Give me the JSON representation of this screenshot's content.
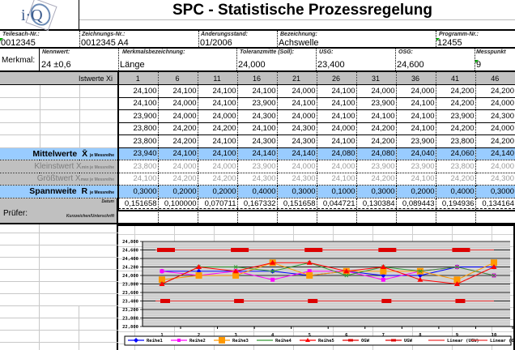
{
  "header": {
    "logo_text": "i·Q",
    "title": "SPC - Statistische Prozessregelung"
  },
  "info": {
    "teilesach_label": "Teilesach-Nr.:",
    "teilesach_value": "0012345",
    "zeichnung_label": "Zeichnungs-Nr.:",
    "zeichnung_value": "0012345 A4",
    "aenderung_label": "Änderungsstand:",
    "aenderung_value": "01/2006",
    "bezeichnung_label": "Bezeichnung:",
    "bezeichnung_value": "Achswelle",
    "programm_label": "Programm-Nr.:",
    "programm_value": "12455"
  },
  "merkmal": {
    "label": "Merkmal:",
    "nennwert_label": "Nennwert:",
    "nennwert_value": "24 ±0,6",
    "bezeichnung_label": "Merkmalsbezeichnung:",
    "bezeichnung_value": "Länge",
    "toleranz_label": "Toleranzmitte (Soll):",
    "toleranz_value": "24,000",
    "usg_label": "USG:",
    "usg_value": "23,400",
    "osg_label": "OSG:",
    "osg_value": "24,600",
    "messpunkt_label": "Messpunkt",
    "messpunkt_value": "9"
  },
  "table": {
    "istwerte_label": "Istwerte Xi",
    "columns": [
      "1",
      "6",
      "11",
      "16",
      "21",
      "26",
      "31",
      "36",
      "41",
      "46"
    ],
    "rows": [
      [
        "24,100",
        "24,100",
        "24,100",
        "24,100",
        "24,000",
        "24,100",
        "24,000",
        "24,000",
        "24,200",
        "24,200"
      ],
      [
        "24,100",
        "24,000",
        "24,100",
        "23,900",
        "24,100",
        "24,100",
        "23,900",
        "24,100",
        "24,200",
        "24,000"
      ],
      [
        "23,900",
        "24,000",
        "24,000",
        "24,300",
        "24,000",
        "24,100",
        "24,100",
        "24,100",
        "23,900",
        "24,300"
      ],
      [
        "23,800",
        "24,200",
        "24,200",
        "24,100",
        "24,300",
        "24,000",
        "24,200",
        "24,100",
        "24,200",
        "24,000"
      ],
      [
        "23,800",
        "24,200",
        "24,100",
        "24,300",
        "24,300",
        "24,100",
        "24,200",
        "23,900",
        "23,800",
        "24,200"
      ]
    ],
    "mittelwerte_label": "Mittelwerte",
    "mittelwerte_symbol": "X̄",
    "je_messreihe": "je Messreihe",
    "mittelwerte": [
      "23,940",
      "24,100",
      "24,100",
      "24,140",
      "24,140",
      "24,080",
      "24,080",
      "24,040",
      "24,060",
      "24,140"
    ],
    "kleinstwert_label": "Kleinstwert X",
    "kleinstwert_sub": "min je Messreihe",
    "kleinstwert": [
      "23,800",
      "24,000",
      "24,000",
      "23,900",
      "24,000",
      "24,000",
      "23,900",
      "23,900",
      "23,800",
      "24,000"
    ],
    "groesstwert_label": "Größtwert X",
    "groesstwert_sub": "max je Messreihe",
    "groesstwert": [
      "24,100",
      "24,200",
      "24,200",
      "24,300",
      "24,300",
      "24,100",
      "24,200",
      "24,100",
      "24,200",
      "24,300"
    ],
    "spannweite_label": "Spannweite",
    "spannweite_symbol": "R",
    "spannweite": [
      "0,3000",
      "0,2000",
      "0,2000",
      "0,4000",
      "0,3000",
      "0,1000",
      "0,3000",
      "0,2000",
      "0,4000",
      "0,3000"
    ],
    "std_label": "Standardabweichung S",
    "std_sub": "x je Messreihe",
    "std": [
      "0,151658",
      "0,100000",
      "0,070711",
      "0,167332",
      "0,151658",
      "0,044721",
      "0,130384",
      "0,089443",
      "0,194936",
      "0,134164"
    ]
  },
  "pruefer": {
    "label": "Prüfer:",
    "datum_label": "Datum",
    "kurzzeichen_label": "Kurzzeichen/Unterschrift"
  },
  "chart_data": {
    "type": "line",
    "title": "",
    "categories": [
      "1",
      "2",
      "3",
      "4",
      "5",
      "6",
      "7",
      "8",
      "9",
      "10"
    ],
    "ylim": [
      22.8,
      24.8
    ],
    "yticks": [
      "24,800",
      "24,600",
      "24,400",
      "24,200",
      "24,000",
      "23,800",
      "23,600",
      "23,400",
      "23,200",
      "23,000",
      "22,800"
    ],
    "xlabel": "",
    "ylabel": "",
    "grid": true,
    "legend_position": "bottom",
    "series": [
      {
        "name": "Reihe1",
        "color": "#0000ff",
        "marker": "diamond",
        "values": [
          24.1,
          24.1,
          24.1,
          24.1,
          24.0,
          24.1,
          24.0,
          24.0,
          24.2,
          24.2
        ]
      },
      {
        "name": "Reihe2",
        "color": "#ff00ff",
        "marker": "square",
        "values": [
          24.1,
          24.0,
          24.1,
          23.9,
          24.1,
          24.1,
          23.9,
          24.1,
          24.2,
          24.0
        ]
      },
      {
        "name": "Reihe3",
        "color": "#ff9900",
        "marker": "square-large",
        "values": [
          23.9,
          24.0,
          24.0,
          24.3,
          24.0,
          24.1,
          24.1,
          24.1,
          23.9,
          24.3
        ]
      },
      {
        "name": "Reihe4",
        "color": "#339933",
        "marker": "x",
        "values": [
          23.8,
          24.2,
          24.2,
          24.1,
          24.3,
          24.0,
          24.2,
          24.1,
          24.2,
          24.0
        ]
      },
      {
        "name": "Reihe5",
        "color": "#ff0000",
        "marker": "triangle",
        "values": [
          23.8,
          24.2,
          24.1,
          24.3,
          24.3,
          24.1,
          24.2,
          23.9,
          23.8,
          24.2
        ]
      },
      {
        "name": "OGW",
        "color": "#dd0000",
        "marker": "dash",
        "values": [
          24.6,
          24.6,
          24.6,
          24.6,
          24.6,
          24.6,
          24.6,
          24.6,
          24.6,
          24.6
        ]
      },
      {
        "name": "UGW",
        "color": "#dd0000",
        "marker": "dash",
        "values": [
          23.4,
          23.4,
          23.4,
          23.4,
          23.4,
          23.4,
          23.4,
          23.4,
          23.4,
          23.4
        ]
      },
      {
        "name": "Linear (UGW)",
        "color": "#ee3333",
        "marker": "none",
        "values": []
      },
      {
        "name": "Linear (OGW)",
        "color": "#ee3333",
        "marker": "none",
        "values": []
      }
    ]
  }
}
